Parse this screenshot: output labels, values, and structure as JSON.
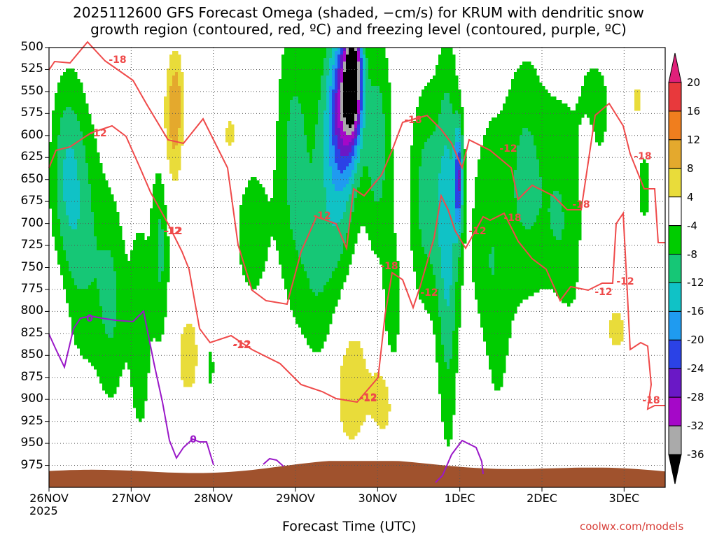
{
  "chart_data": {
    "type": "heatmap",
    "title": "2025112600 GFS Forecast Omega (shaded, −cm/s) for KRUM with dendritic snow",
    "subtitle": "growth region (contoured, red, ºC) and freezing level (contoured, purple, ºC)",
    "xlabel": "Forecast Time (UTC)",
    "ylabel": "",
    "credit": "coolwx.com/models",
    "x_ticks": [
      "26NOV",
      "27NOV",
      "28NOV",
      "29NOV",
      "30NOV",
      "1DEC",
      "2DEC",
      "3DEC"
    ],
    "x_year": "2025",
    "y_ticks": [
      "500",
      "525",
      "550",
      "575",
      "600",
      "625",
      "650",
      "675",
      "700",
      "725",
      "750",
      "775",
      "800",
      "825",
      "850",
      "875",
      "900",
      "925",
      "950",
      "975"
    ],
    "ylim": [
      500,
      1000
    ],
    "y_reversed": true,
    "colorbar": {
      "labels": [
        "20",
        "16",
        "12",
        "8",
        "4",
        "-4",
        "-8",
        "-12",
        "-16",
        "-20",
        "-24",
        "-28",
        "-32",
        "-36"
      ],
      "bins": [
        {
          "from": 16,
          "to": 20,
          "color": "#e8393c"
        },
        {
          "from": 12,
          "to": 16,
          "color": "#f07e1e"
        },
        {
          "from": 8,
          "to": 12,
          "color": "#e4a92d"
        },
        {
          "from": 4,
          "to": 8,
          "color": "#e9dc3a"
        },
        {
          "from": -4,
          "to": 4,
          "color": "#ffffff"
        },
        {
          "from": -8,
          "to": -4,
          "color": "#00cc00"
        },
        {
          "from": -12,
          "to": -8,
          "color": "#16c776"
        },
        {
          "from": -16,
          "to": -12,
          "color": "#10c2c6"
        },
        {
          "from": -20,
          "to": -16,
          "color": "#1f9bf0"
        },
        {
          "from": -24,
          "to": -20,
          "color": "#2b42e6"
        },
        {
          "from": -28,
          "to": -24,
          "color": "#6a18c6"
        },
        {
          "from": -32,
          "to": -28,
          "color": "#a508c8"
        },
        {
          "from": -36,
          "to": -32,
          "color": "#aaaaaa"
        }
      ],
      "top_arrow_color": "#e0207a",
      "bottom_arrow_color": "#000000"
    },
    "contour_labels": {
      "red": [
        "-18",
        "-12",
        "-12",
        "-12",
        "-18",
        "-12",
        "-18",
        "-18",
        "-12",
        "-12",
        "-18",
        "-18",
        "-12",
        "-12",
        "-12",
        "-12",
        "-18",
        "-12",
        "-12",
        "-12"
      ],
      "purple": [
        "0",
        "0"
      ]
    },
    "colors": {
      "dgz_contour": "#ef4a4a",
      "freezing_contour": "#9a18c8",
      "terrain": "#a0522d",
      "grid": "#777777"
    }
  }
}
